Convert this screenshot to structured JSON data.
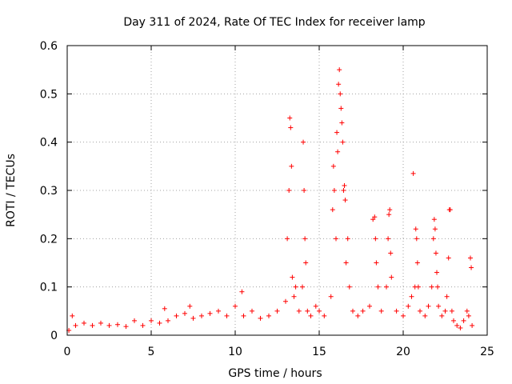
{
  "chart_data": {
    "type": "scatter",
    "title": "Day 311 of 2024, Rate Of TEC Index for receiver lamp",
    "xlabel": "GPS time / hours",
    "ylabel": "ROTI / TECUs",
    "xlim": [
      0,
      25
    ],
    "ylim": [
      0,
      0.6
    ],
    "xticks": [
      "0",
      "5",
      "10",
      "15",
      "20",
      "25"
    ],
    "yticks": [
      "0",
      "0.1",
      "0.2",
      "0.3",
      "0.4",
      "0.5",
      "0.6"
    ],
    "grid": true,
    "marker": "plus",
    "color": "#ff0000",
    "series": [
      {
        "x": [
          0.1,
          0.3,
          0.5,
          1.0,
          1.5,
          2.0,
          2.5,
          3.0,
          3.5,
          4.0,
          4.5,
          5.0,
          5.5,
          5.8,
          6.0,
          6.5,
          7.0,
          7.3,
          7.5,
          8.0,
          8.5,
          9.0,
          9.5,
          10.0,
          10.4,
          10.5,
          11.0,
          11.5,
          12.0,
          12.5,
          13.0,
          13.1,
          13.2,
          13.25,
          13.3,
          13.35,
          13.4,
          13.5,
          13.6,
          13.8,
          14.0,
          14.05,
          14.1,
          14.15,
          14.2,
          14.3,
          14.5,
          14.8,
          15.0,
          15.3,
          15.7,
          15.8,
          15.85,
          15.9,
          16.0,
          16.05,
          16.1,
          16.15,
          16.2,
          16.25,
          16.3,
          16.35,
          16.4,
          16.45,
          16.5,
          16.55,
          16.6,
          16.7,
          16.8,
          17.0,
          17.3,
          17.6,
          18.0,
          18.2,
          18.3,
          18.35,
          18.4,
          18.5,
          18.7,
          19.0,
          19.1,
          19.15,
          19.2,
          19.25,
          19.3,
          19.6,
          20.0,
          20.3,
          20.5,
          20.6,
          20.7,
          20.75,
          20.8,
          20.85,
          20.9,
          21.0,
          21.3,
          21.5,
          21.7,
          21.8,
          21.85,
          21.9,
          21.95,
          22.0,
          22.05,
          22.1,
          22.3,
          22.5,
          22.6,
          22.7,
          22.75,
          22.8,
          22.9,
          23.0,
          23.2,
          23.4,
          23.6,
          23.8,
          23.9,
          24.0,
          24.05,
          24.1
        ],
        "y": [
          0.01,
          0.04,
          0.02,
          0.025,
          0.02,
          0.025,
          0.02,
          0.022,
          0.018,
          0.03,
          0.02,
          0.03,
          0.025,
          0.055,
          0.03,
          0.04,
          0.045,
          0.06,
          0.035,
          0.04,
          0.045,
          0.05,
          0.04,
          0.06,
          0.09,
          0.04,
          0.05,
          0.035,
          0.04,
          0.05,
          0.07,
          0.2,
          0.3,
          0.45,
          0.43,
          0.35,
          0.12,
          0.08,
          0.1,
          0.05,
          0.1,
          0.4,
          0.3,
          0.2,
          0.15,
          0.05,
          0.04,
          0.06,
          0.05,
          0.04,
          0.08,
          0.26,
          0.35,
          0.3,
          0.2,
          0.42,
          0.38,
          0.52,
          0.55,
          0.5,
          0.47,
          0.44,
          0.4,
          0.3,
          0.31,
          0.28,
          0.15,
          0.2,
          0.1,
          0.05,
          0.04,
          0.05,
          0.06,
          0.24,
          0.245,
          0.2,
          0.15,
          0.1,
          0.05,
          0.1,
          0.2,
          0.25,
          0.26,
          0.17,
          0.12,
          0.05,
          0.04,
          0.06,
          0.08,
          0.335,
          0.1,
          0.22,
          0.2,
          0.15,
          0.1,
          0.05,
          0.04,
          0.06,
          0.1,
          0.2,
          0.24,
          0.22,
          0.17,
          0.13,
          0.1,
          0.06,
          0.04,
          0.05,
          0.08,
          0.16,
          0.26,
          0.26,
          0.05,
          0.03,
          0.02,
          0.015,
          0.03,
          0.05,
          0.04,
          0.16,
          0.14,
          0.02
        ]
      }
    ]
  }
}
